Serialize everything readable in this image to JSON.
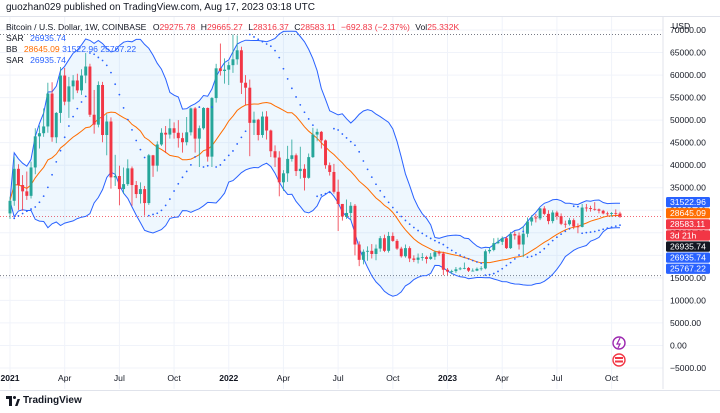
{
  "header": {
    "published": "guozhan029 published on TradingView.com, Aug 17, 2023 03:18 UTC"
  },
  "legend": {
    "symbol": "Bitcoin / U.S. Dollar, 1W, COINBASE",
    "ohlc": [
      {
        "k": "O",
        "v": "29275.78"
      },
      {
        "k": "H",
        "v": "29665.27"
      },
      {
        "k": "L",
        "v": "28316.37"
      },
      {
        "k": "C",
        "v": "28583.11"
      },
      {
        "k": "",
        "v": "−692.83 (−2.37%)"
      }
    ],
    "vol_label": "Vol",
    "vol_value": "25.332K",
    "sar1_label": "SAR",
    "sar1_value": "26935.74",
    "bb_label": "BB",
    "bb_basis": "28645.09",
    "bb_upper": "31522.96",
    "bb_lower": "25767.22",
    "sar2_label": "SAR",
    "sar2_value": "26935.74"
  },
  "footer": {
    "brand": "TradingView"
  },
  "colors": {
    "up": "#26a69a",
    "down": "#f23645",
    "basis": "#ff6d00",
    "band": "#2962ff",
    "band_fill": "rgba(33,150,243,0.08)",
    "sar": "#2962ff"
  },
  "chart_data": {
    "type": "candlestick",
    "title": "Bitcoin / U.S. Dollar, 1W, COINBASE",
    "currency": "USD",
    "yticks": [
      "70000.00",
      "65000.00",
      "60000.00",
      "55000.00",
      "50000.00",
      "45000.00",
      "40000.00",
      "35000.00",
      "30000.00",
      "25000.00",
      "20000.00",
      "15000.00",
      "10000.00",
      "5000.00",
      "0.00",
      "−5000.00"
    ],
    "ylim": [
      -7000,
      72000
    ],
    "xticks": [
      "2021",
      "Apr",
      "Jul",
      "Oct",
      "2022",
      "Apr",
      "Jul",
      "Oct",
      "2023",
      "Apr",
      "Jul",
      "Oct"
    ],
    "horizontal_lines": [
      69000,
      15500
    ],
    "last_price_line": 28583.11,
    "price_tags": [
      {
        "value": "31522.96",
        "color": "#2962ff"
      },
      {
        "value": "28645.09",
        "color": "#ff6d00"
      },
      {
        "value": "28583.11",
        "color": "#f23645"
      },
      {
        "value": "3d 21h",
        "color": "#f23645"
      },
      {
        "value": "26935.74",
        "color": "#131722"
      },
      {
        "value": "26935.74",
        "color": "#2962ff"
      },
      {
        "value": "25767.22",
        "color": "#2962ff"
      }
    ],
    "candles": [
      [
        29300,
        33000,
        28100,
        32100
      ],
      [
        32100,
        41900,
        31000,
        39200
      ],
      [
        39200,
        40200,
        30100,
        35600
      ],
      [
        35600,
        37800,
        29900,
        34200
      ],
      [
        34200,
        38600,
        32300,
        33200
      ],
      [
        33200,
        40800,
        32600,
        39500
      ],
      [
        39500,
        48200,
        38000,
        46400
      ],
      [
        46400,
        48800,
        43700,
        47100
      ],
      [
        47100,
        52600,
        46300,
        48600
      ],
      [
        48600,
        58300,
        47200,
        55900
      ],
      [
        55900,
        58400,
        45200,
        46200
      ],
      [
        46200,
        51800,
        44900,
        51600
      ],
      [
        51600,
        61800,
        49400,
        59900
      ],
      [
        59900,
        61600,
        53300,
        54100
      ],
      [
        54100,
        59600,
        50500,
        57500
      ],
      [
        57500,
        60000,
        54600,
        58800
      ],
      [
        58800,
        60300,
        56000,
        56600
      ],
      [
        56600,
        61300,
        55600,
        59900
      ],
      [
        59900,
        64900,
        58200,
        61900
      ],
      [
        61900,
        62500,
        50700,
        51200
      ],
      [
        51200,
        56700,
        47000,
        49000
      ],
      [
        49000,
        58600,
        48400,
        57800
      ],
      [
        57800,
        58500,
        45100,
        46700
      ],
      [
        46700,
        51300,
        42200,
        49700
      ],
      [
        49700,
        50600,
        34800,
        37300
      ],
      [
        37300,
        42300,
        35400,
        37600
      ],
      [
        37600,
        39900,
        31100,
        34700
      ],
      [
        34700,
        39500,
        33700,
        35800
      ],
      [
        35800,
        41300,
        35400,
        39300
      ],
      [
        39300,
        39700,
        31000,
        35600
      ],
      [
        35600,
        36500,
        32700,
        33600
      ],
      [
        33600,
        36200,
        31500,
        34700
      ],
      [
        34700,
        35400,
        28800,
        31600
      ],
      [
        31600,
        42500,
        31200,
        42200
      ],
      [
        42200,
        42300,
        37400,
        39900
      ],
      [
        39900,
        45300,
        38600,
        44600
      ],
      [
        44600,
        48200,
        44300,
        47200
      ],
      [
        47200,
        48700,
        42700,
        46800
      ],
      [
        46800,
        50300,
        45900,
        48200
      ],
      [
        48200,
        49500,
        45900,
        47200
      ],
      [
        47200,
        50000,
        43900,
        46000
      ],
      [
        46000,
        47200,
        42800,
        45100
      ],
      [
        45100,
        50700,
        44400,
        47300
      ],
      [
        47300,
        52800,
        46600,
        52600
      ],
      [
        52600,
        52900,
        42800,
        45900
      ],
      [
        45900,
        48800,
        39600,
        48200
      ],
      [
        48200,
        52900,
        47900,
        52700
      ],
      [
        52700,
        52800,
        40800,
        41900
      ],
      [
        41900,
        55100,
        39600,
        54900
      ],
      [
        54900,
        62500,
        53900,
        61500
      ],
      [
        61500,
        67000,
        59900,
        60900
      ],
      [
        60900,
        63700,
        58100,
        61200
      ],
      [
        61200,
        63000,
        57800,
        62200
      ],
      [
        62200,
        69000,
        60500,
        63500
      ],
      [
        63500,
        68800,
        62300,
        65500
      ],
      [
        65500,
        66300,
        55800,
        58300
      ],
      [
        58300,
        60000,
        53300,
        57200
      ],
      [
        57200,
        59000,
        42000,
        49400
      ],
      [
        49400,
        51900,
        46700,
        50100
      ],
      [
        50100,
        50300,
        45500,
        46700
      ],
      [
        46700,
        51900,
        46100,
        50800
      ],
      [
        50800,
        52000,
        45700,
        47700
      ],
      [
        47700,
        47900,
        41800,
        43100
      ],
      [
        43100,
        44400,
        39600,
        41700
      ],
      [
        41700,
        43100,
        33100,
        36200
      ],
      [
        36200,
        38900,
        34300,
        38200
      ],
      [
        38200,
        44300,
        36300,
        41400
      ],
      [
        41400,
        45700,
        40800,
        42200
      ],
      [
        42200,
        42600,
        37600,
        38700
      ],
      [
        38700,
        44100,
        37000,
        39200
      ],
      [
        39200,
        40200,
        34400,
        37200
      ],
      [
        37200,
        42600,
        37000,
        41800
      ],
      [
        41800,
        48300,
        41600,
        46800
      ],
      [
        46800,
        48100,
        45300,
        47400
      ],
      [
        47400,
        47600,
        43700,
        45500
      ],
      [
        45500,
        45700,
        39200,
        40000
      ],
      [
        40000,
        40600,
        37700,
        38500
      ],
      [
        38500,
        40300,
        33700,
        34100
      ],
      [
        34100,
        36800,
        25400,
        31400
      ],
      [
        31400,
        31400,
        27700,
        28600
      ],
      [
        28600,
        32400,
        28100,
        29400
      ],
      [
        29400,
        31800,
        27800,
        31000
      ],
      [
        31000,
        31400,
        20000,
        22400
      ],
      [
        22400,
        23100,
        17600,
        19000
      ],
      [
        19000,
        21300,
        18000,
        20800
      ],
      [
        20800,
        22000,
        18800,
        21000
      ],
      [
        21000,
        22500,
        19300,
        20300
      ],
      [
        20300,
        22400,
        18900,
        21500
      ],
      [
        21500,
        24300,
        20800,
        23800
      ],
      [
        23800,
        24600,
        20700,
        21000
      ],
      [
        21000,
        25200,
        20600,
        24300
      ],
      [
        24300,
        25100,
        23000,
        23200
      ],
      [
        23200,
        23600,
        21200,
        21500
      ],
      [
        21500,
        21900,
        19500,
        19800
      ],
      [
        19800,
        22400,
        19500,
        21600
      ],
      [
        21600,
        22000,
        18500,
        19300
      ],
      [
        19300,
        20000,
        18500,
        19000
      ],
      [
        19000,
        20400,
        18200,
        19500
      ],
      [
        19500,
        20500,
        18800,
        19600
      ],
      [
        19600,
        19900,
        18200,
        19200
      ],
      [
        19200,
        20500,
        19000,
        19700
      ],
      [
        19700,
        21100,
        19000,
        20700
      ],
      [
        20700,
        21100,
        19900,
        20400
      ],
      [
        20400,
        20800,
        15600,
        16800
      ],
      [
        16800,
        17200,
        15600,
        16400
      ],
      [
        16400,
        16800,
        15800,
        16500
      ],
      [
        16500,
        17400,
        16100,
        16900
      ],
      [
        16900,
        17400,
        16700,
        17100
      ],
      [
        17100,
        18400,
        16900,
        17200
      ],
      [
        17200,
        17400,
        16300,
        16600
      ],
      [
        16600,
        17100,
        16400,
        16600
      ],
      [
        16600,
        17300,
        16500,
        17000
      ],
      [
        17000,
        17600,
        16600,
        17100
      ],
      [
        17100,
        21300,
        16900,
        20900
      ],
      [
        20900,
        21700,
        20400,
        21200
      ],
      [
        21200,
        23800,
        20900,
        22700
      ],
      [
        22700,
        23900,
        22500,
        23000
      ],
      [
        23000,
        24200,
        22300,
        23800
      ],
      [
        23800,
        24200,
        21400,
        21600
      ],
      [
        21600,
        25200,
        21400,
        24700
      ],
      [
        24700,
        25300,
        23500,
        24400
      ],
      [
        24400,
        25100,
        21300,
        22400
      ],
      [
        22400,
        26500,
        19600,
        24800
      ],
      [
        24800,
        28400,
        24000,
        27500
      ],
      [
        27500,
        28900,
        26600,
        28400
      ],
      [
        28400,
        29200,
        27300,
        28200
      ],
      [
        28200,
        30500,
        27800,
        30400
      ],
      [
        30400,
        30900,
        28900,
        29200
      ],
      [
        29200,
        30000,
        26900,
        27600
      ],
      [
        27600,
        30000,
        27100,
        29500
      ],
      [
        29500,
        29900,
        27900,
        28700
      ],
      [
        28700,
        29300,
        26700,
        27000
      ],
      [
        27000,
        27700,
        26100,
        26900
      ],
      [
        26900,
        28300,
        26600,
        27800
      ],
      [
        27800,
        28200,
        25800,
        26400
      ],
      [
        26400,
        27100,
        24900,
        26300
      ],
      [
        26300,
        31400,
        26200,
        30600
      ],
      [
        30600,
        31400,
        29700,
        30500
      ],
      [
        30500,
        31000,
        29700,
        30300
      ],
      [
        30300,
        31800,
        29900,
        30200
      ],
      [
        30200,
        30400,
        29300,
        29900
      ],
      [
        29900,
        30100,
        29100,
        29300
      ],
      [
        29300,
        29700,
        28600,
        29200
      ],
      [
        29200,
        29600,
        28600,
        29400
      ],
      [
        29400,
        30200,
        28600,
        29300
      ],
      [
        29275.78,
        29665.27,
        28316.37,
        28583.11
      ]
    ]
  }
}
